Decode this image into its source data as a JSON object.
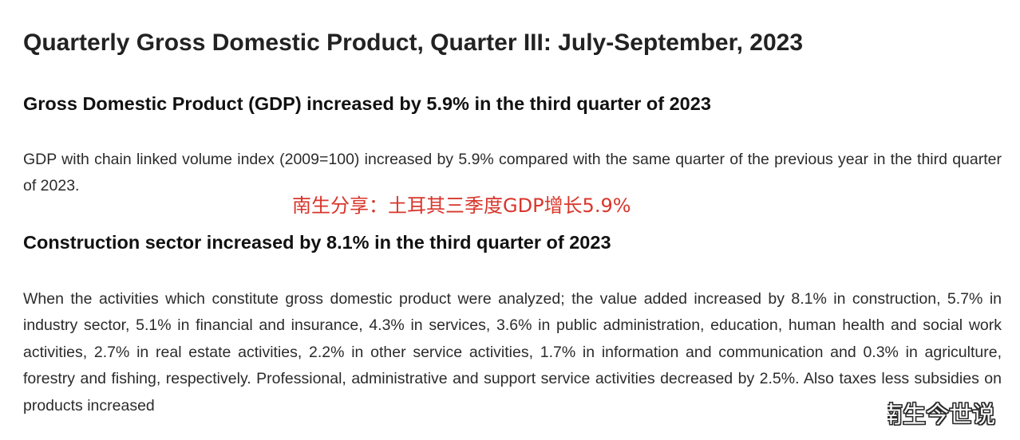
{
  "page": {
    "title": "Quarterly Gross Domestic Product, Quarter III: July-September, 2023"
  },
  "sections": [
    {
      "heading": "Gross Domestic Product (GDP) increased by 5.9% in the third quarter of 2023",
      "paragraph": "GDP with chain linked volume index (2009=100) increased by 5.9% compared with the same quarter of the previous year in the third quarter of 2023."
    },
    {
      "heading": "Construction sector increased by 8.1% in the third quarter of 2023",
      "paragraph": "When the activities which constitute gross domestic product were analyzed; the value added increased by 8.1% in construction, 5.7% in industry sector, 5.1% in financial and insurance, 4.3% in services, 3.6% in public administration, education, human health and social work activities, 2.7% in real estate activities, 2.2% in other service activities, 1.7% in information and communication and 0.3% in agriculture, forestry and fishing, respectively. Professional, administrative and support service activities decreased by 2.5%. Also taxes less subsidies on products increased"
    }
  ],
  "overlay": {
    "caption": "南生分享：土耳其三季度GDP增长5.9%",
    "caption_color": "#d9362b",
    "watermark": "南生今世说"
  }
}
